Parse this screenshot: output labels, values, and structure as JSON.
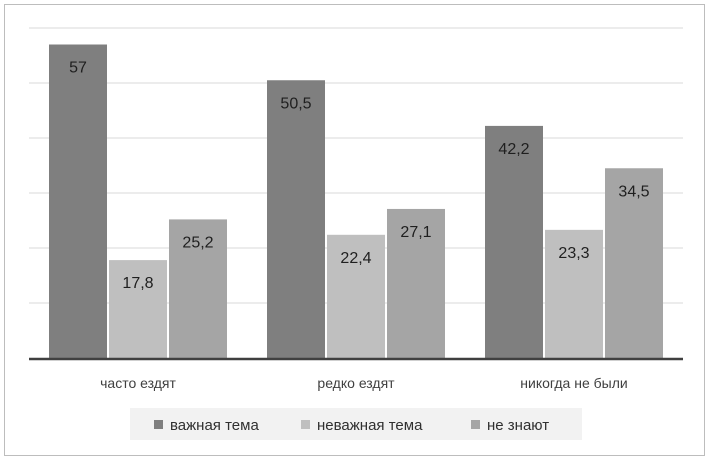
{
  "chart_data": {
    "type": "bar",
    "title": "",
    "xlabel": "",
    "ylabel": "",
    "ylim": [
      0,
      60
    ],
    "grid": true,
    "legend_position": "bottom",
    "categories": [
      "часто ездят",
      "редко ездят",
      "никогда не были"
    ],
    "series": [
      {
        "name": "важная тема",
        "color": "#7f7f7f",
        "values": [
          57,
          50.5,
          42.2
        ],
        "labels": [
          "57",
          "50,5",
          "42,2"
        ]
      },
      {
        "name": "неважная тема",
        "color": "#bfbfbf",
        "values": [
          17.8,
          22.4,
          23.3
        ],
        "labels": [
          "17,8",
          "22,4",
          "23,3"
        ]
      },
      {
        "name": "не знают",
        "color": "#a5a5a5",
        "values": [
          25.2,
          27.1,
          34.5
        ],
        "labels": [
          "25,2",
          "27,1",
          "34,5"
        ]
      }
    ]
  }
}
